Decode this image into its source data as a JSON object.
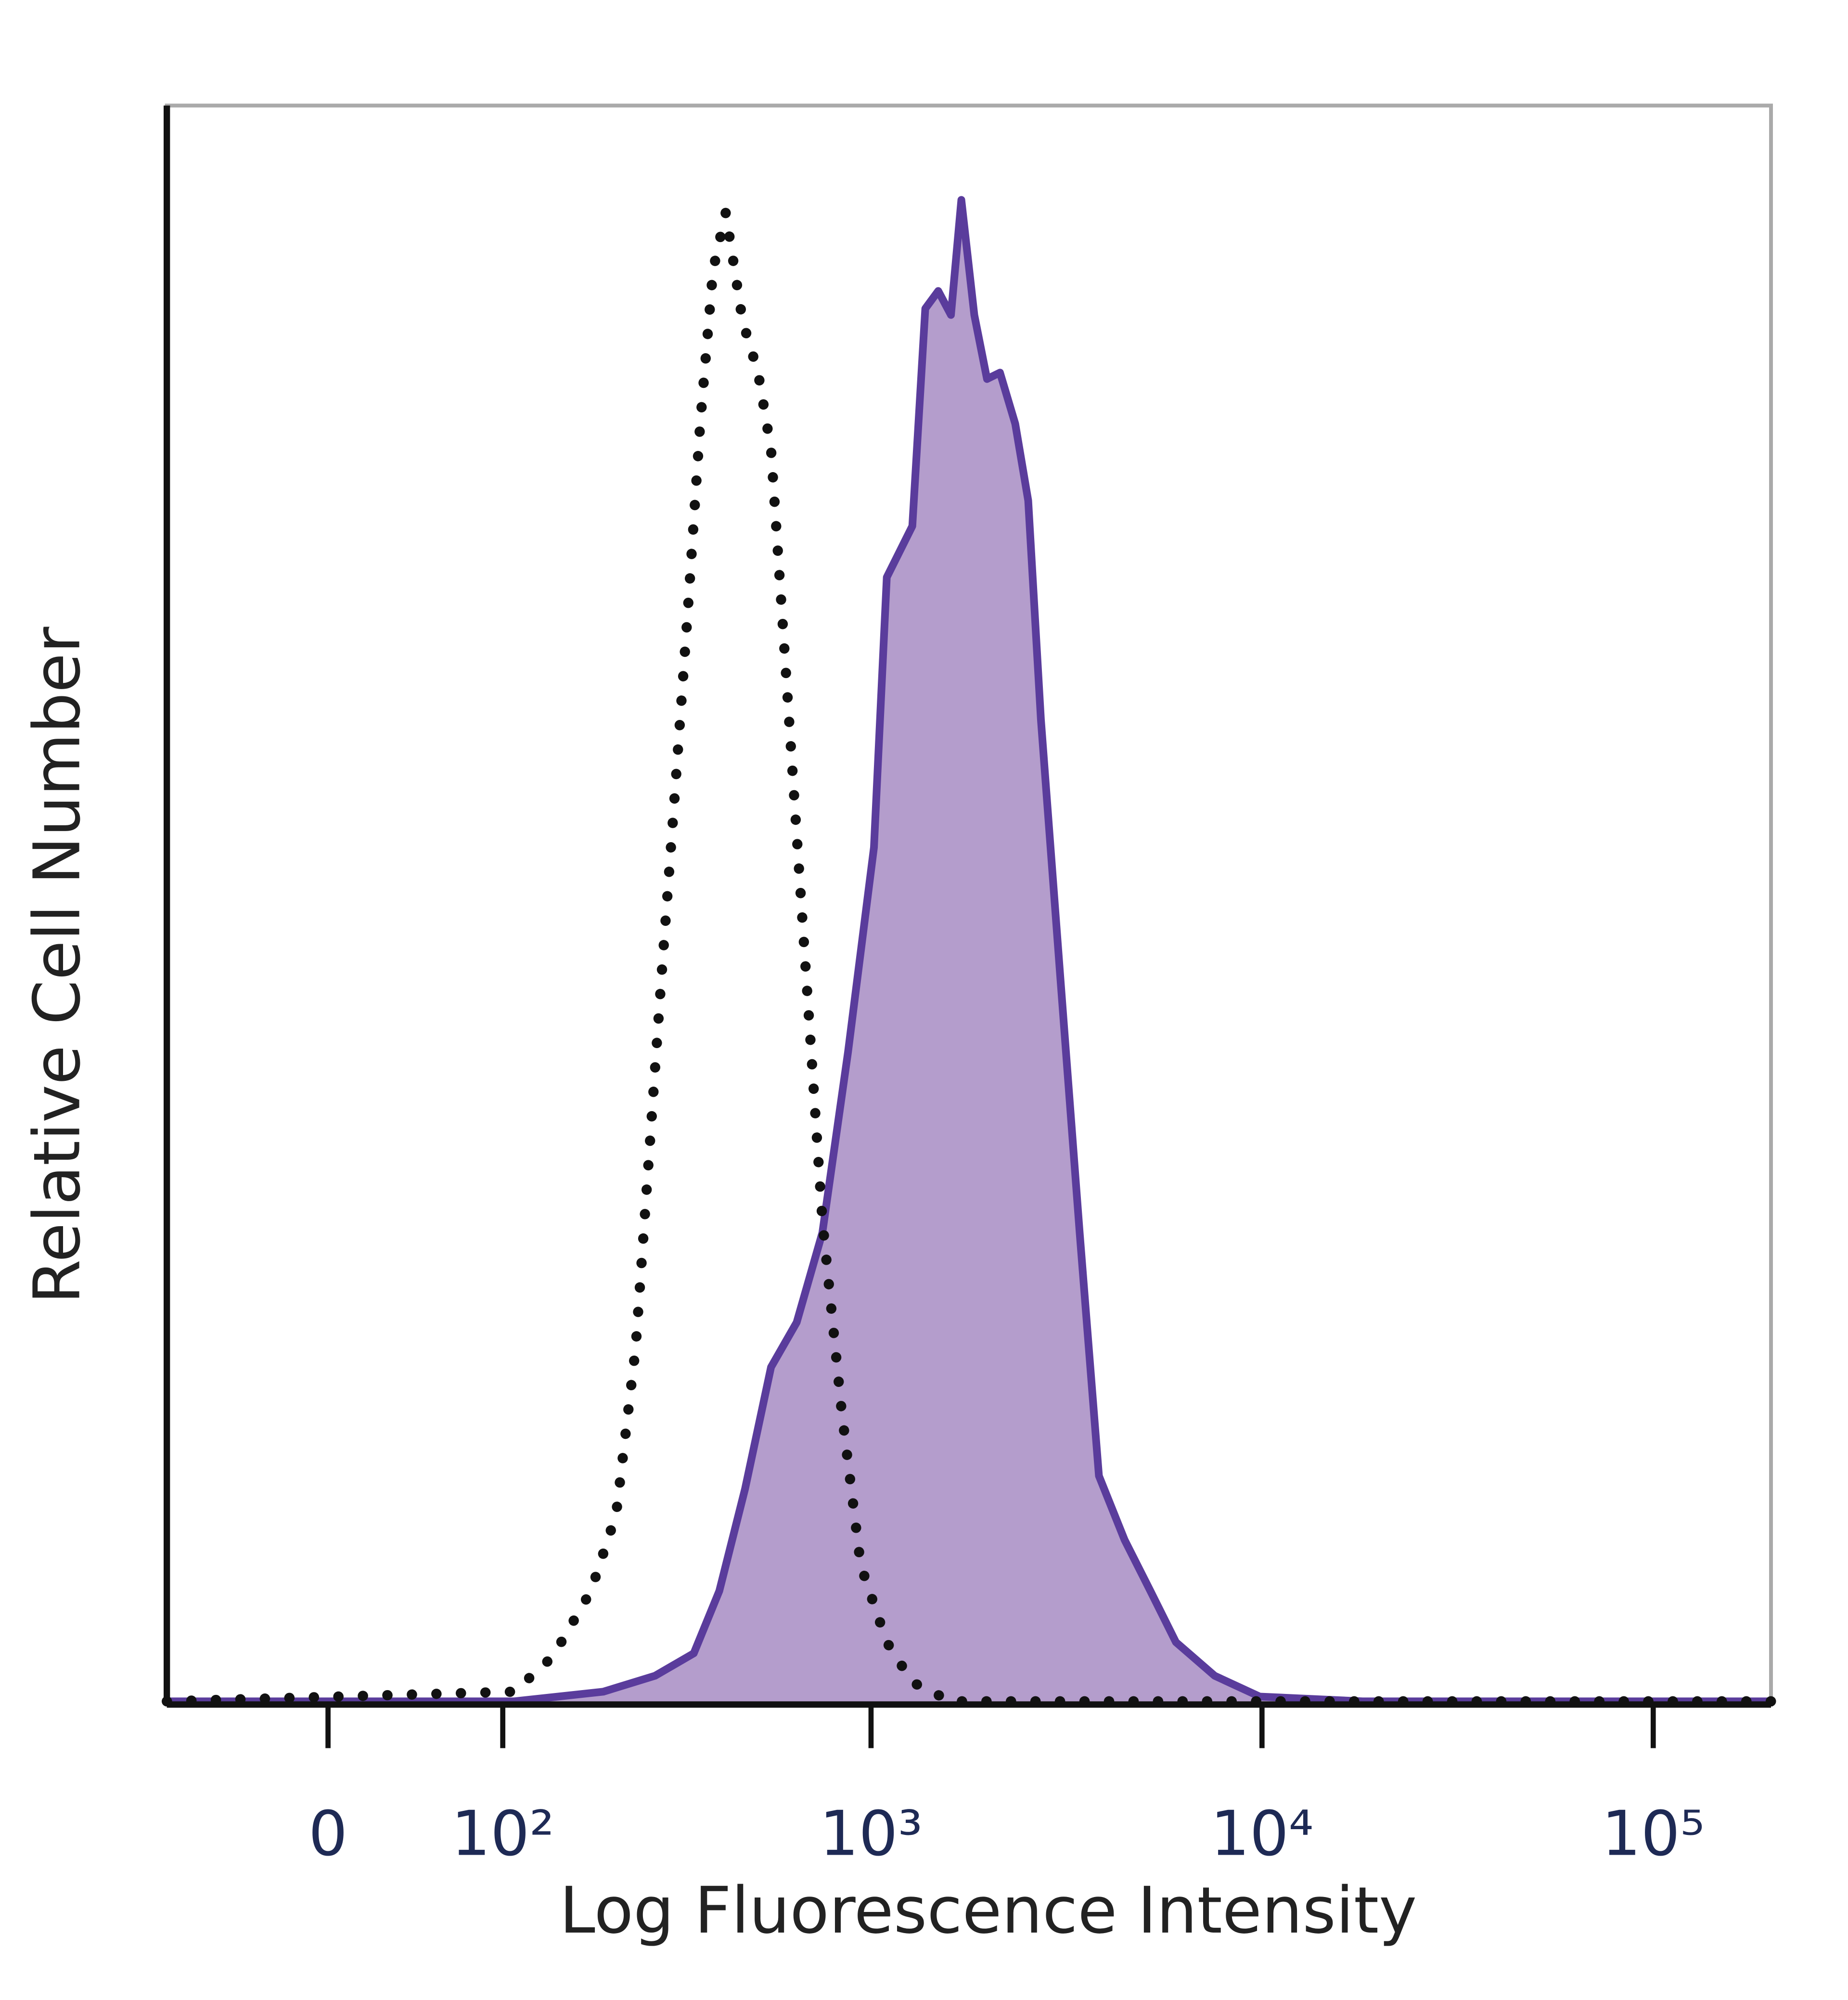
{
  "chart_data": {
    "type": "histogram-overlay",
    "x_label": "Log Fluorescence Intensity",
    "y_label": "Relative Cell Number",
    "xscale": "biexponential",
    "xlim": [
      -90,
      200000
    ],
    "ylim": [
      0,
      100
    ],
    "xticks": [
      0,
      {
        "value": 100,
        "label": "10²"
      },
      {
        "value": 1000,
        "label": "10³"
      },
      {
        "value": 10000,
        "label": "10⁴"
      },
      {
        "value": 100000,
        "label": "10⁵"
      }
    ],
    "series": [
      {
        "color": "#5a3c9c",
        "fill": "#b49dcc",
        "line_style": "solid",
        "x": [
          -90,
          109,
          199,
          275,
          348,
          406,
          474,
          553,
          644,
          750,
          873,
          1017,
          1097,
          1276,
          1377,
          1486,
          1602,
          1703,
          1838,
          1981,
          2138,
          2340,
          2526,
          2722,
          3050,
          3419,
          3829,
          4453,
          5183,
          6027,
          7569,
          9865,
          18081,
          200000
        ],
        "values": [
          0.2,
          0.2,
          0.8,
          1.8,
          3.2,
          7.1,
          13.5,
          21.1,
          23.9,
          29.5,
          40.8,
          53.6,
          70.5,
          73.7,
          87.3,
          88.4,
          86.9,
          94.1,
          86.9,
          82.9,
          83.3,
          80.1,
          75.3,
          61.6,
          45.5,
          29.5,
          14.3,
          10.3,
          7.1,
          3.9,
          1.8,
          0.5,
          0.2,
          0.2
        ]
      },
      {
        "color": "#111111",
        "fill": "none",
        "line_style": "dotted",
        "x": [
          -90,
          109,
          143,
          184,
          216,
          244,
          265,
          286,
          310,
          335,
          362,
          391,
          422,
          467,
          512,
          553,
          597,
          644,
          695,
          750,
          841,
          941,
          1097,
          1276,
          1602,
          200000
        ],
        "values": [
          0.2,
          0.8,
          3.0,
          7.1,
          11.9,
          22.3,
          34.3,
          45.5,
          56.8,
          68.1,
          80.1,
          89.7,
          93.3,
          86.5,
          83.3,
          78.5,
          66.5,
          54.4,
          42.4,
          30.3,
          18.3,
          8.7,
          3.9,
          1.4,
          0.2,
          0.2
        ]
      }
    ]
  }
}
